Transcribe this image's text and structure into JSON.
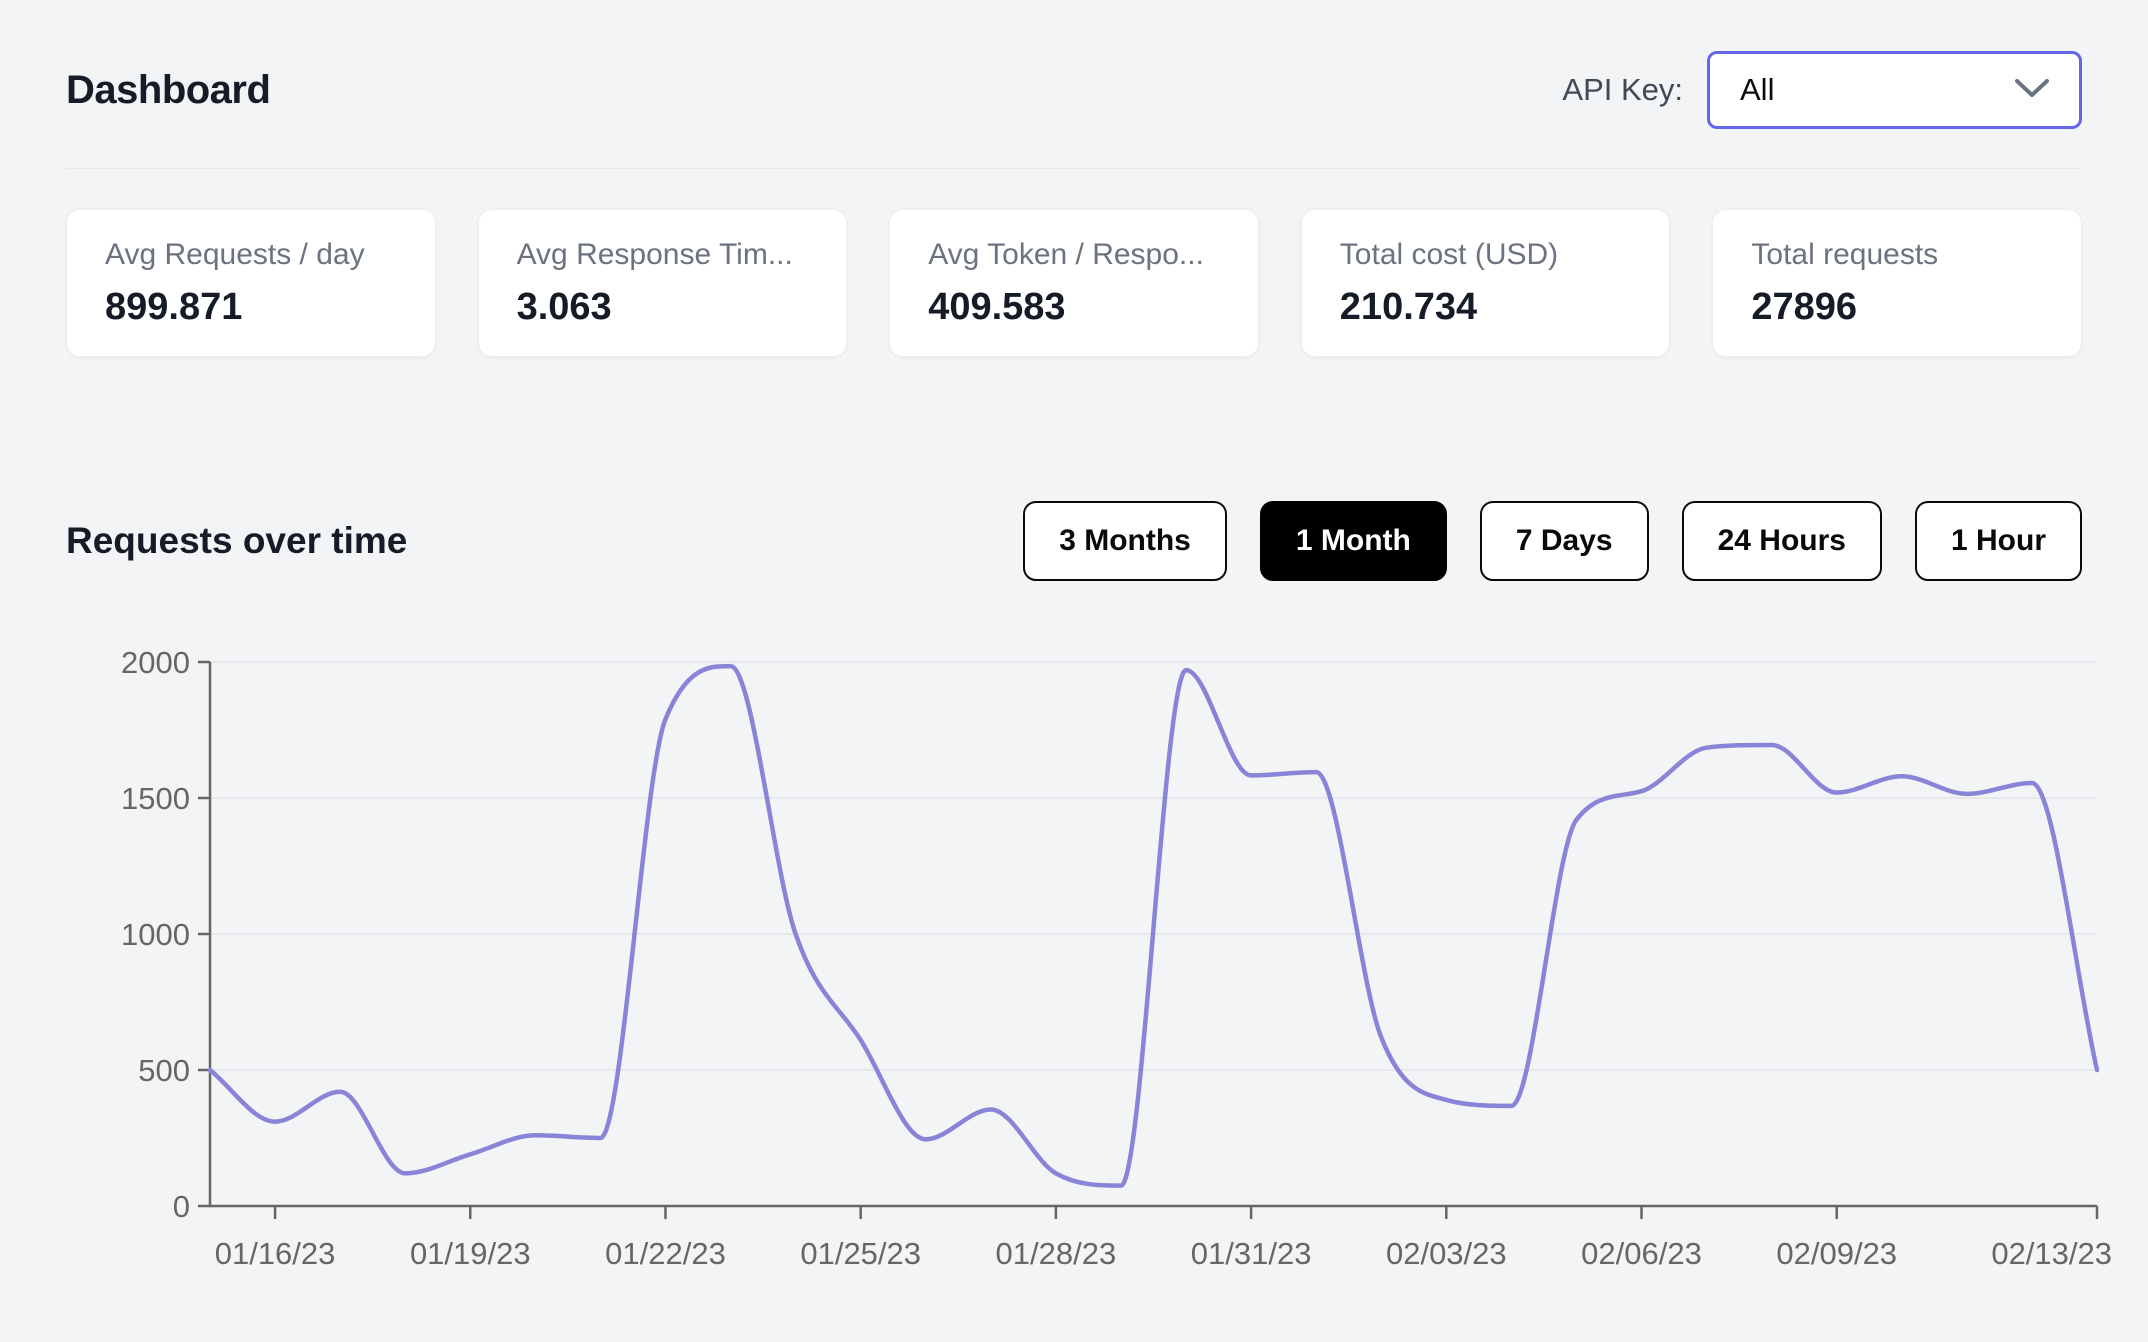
{
  "header": {
    "title": "Dashboard",
    "api_key_label": "API Key:",
    "api_key_value": "All"
  },
  "stats": [
    {
      "label": "Avg Requests / day",
      "value": "899.871"
    },
    {
      "label": "Avg Response Tim...",
      "value": "3.063"
    },
    {
      "label": "Avg Token / Respo...",
      "value": "409.583"
    },
    {
      "label": "Total cost (USD)",
      "value": "210.734"
    },
    {
      "label": "Total requests",
      "value": "27896"
    }
  ],
  "section": {
    "title": "Requests over time",
    "range_buttons": [
      {
        "label": "3 Months",
        "active": false
      },
      {
        "label": "1 Month",
        "active": true
      },
      {
        "label": "7 Days",
        "active": false
      },
      {
        "label": "24 Hours",
        "active": false
      },
      {
        "label": "1 Hour",
        "active": false
      }
    ]
  },
  "chart_data": {
    "type": "line",
    "title": "Requests over time",
    "x": [
      "01/15/23",
      "01/16/23",
      "01/17/23",
      "01/18/23",
      "01/19/23",
      "01/20/23",
      "01/21/23",
      "01/22/23",
      "01/23/23",
      "01/24/23",
      "01/25/23",
      "01/26/23",
      "01/27/23",
      "01/28/23",
      "01/29/23",
      "01/30/23",
      "01/31/23",
      "02/01/23",
      "02/02/23",
      "02/03/23",
      "02/04/23",
      "02/05/23",
      "02/06/23",
      "02/07/23",
      "02/08/23",
      "02/09/23",
      "02/10/23",
      "02/11/23",
      "02/12/23",
      "02/13/23"
    ],
    "values": [
      500,
      310,
      420,
      120,
      190,
      260,
      250,
      1790,
      1985,
      1000,
      610,
      245,
      355,
      120,
      75,
      1970,
      1583,
      1595,
      620,
      390,
      368,
      1420,
      1525,
      1685,
      1695,
      1520,
      1580,
      1515,
      1555,
      500
    ],
    "x_ticks": [
      {
        "label": "01/16/23",
        "i": 1
      },
      {
        "label": "01/19/23",
        "i": 4
      },
      {
        "label": "01/22/23",
        "i": 7
      },
      {
        "label": "01/25/23",
        "i": 10
      },
      {
        "label": "01/28/23",
        "i": 13
      },
      {
        "label": "01/31/23",
        "i": 16
      },
      {
        "label": "02/03/23",
        "i": 19
      },
      {
        "label": "02/06/23",
        "i": 22
      },
      {
        "label": "02/09/23",
        "i": 25
      },
      {
        "label": "02/13/23",
        "i": 29
      }
    ],
    "y_ticks": [
      0,
      500,
      1000,
      1500,
      2000
    ],
    "ylim": [
      0,
      2000
    ],
    "grid": true,
    "legend": "none",
    "line_color": "#8884d8"
  },
  "colors": {
    "accent": "#6466e9",
    "line": "#8884d8",
    "active_button": "#000000",
    "axis_text": "#666666"
  }
}
